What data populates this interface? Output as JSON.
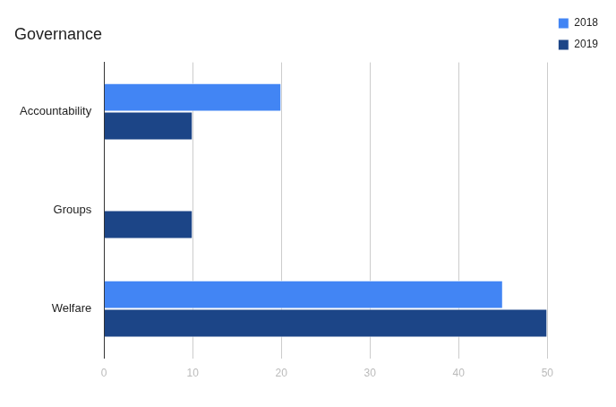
{
  "chart_data": {
    "type": "bar",
    "title": "Governance",
    "orientation": "horizontal",
    "categories": [
      "Accountability",
      "Groups",
      "Welfare"
    ],
    "series": [
      {
        "name": "2018",
        "color": "#4285f4",
        "values": [
          20,
          null,
          45
        ]
      },
      {
        "name": "2019",
        "color": "#1c4587",
        "values": [
          10,
          10,
          50
        ]
      }
    ],
    "xlim": [
      0,
      50
    ],
    "xticks": [
      0,
      10,
      20,
      30,
      40,
      50
    ],
    "grid": true,
    "legend": "top-right"
  }
}
